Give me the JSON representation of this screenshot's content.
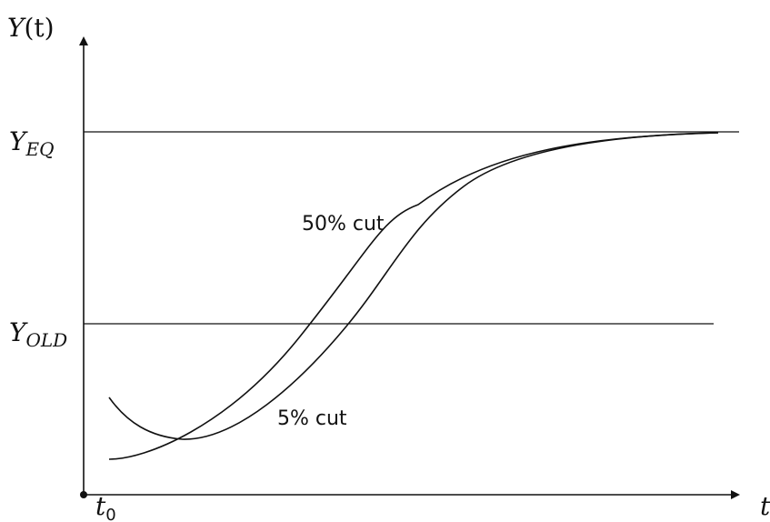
{
  "chart_data": {
    "type": "line",
    "title": "",
    "ylabel": "Y(t)",
    "xlabel": "t",
    "ylabel_main": "Y",
    "ylabel_paren": "(t)",
    "x_tick_main": "t",
    "x_tick_sub": "0",
    "levels": [
      {
        "name": "Y_EQ",
        "main": "Y",
        "sub": "EQ"
      },
      {
        "name": "Y_OLD",
        "main": "Y",
        "sub": "OLD"
      }
    ],
    "series": [
      {
        "name": "50% cut",
        "label": "50% cut"
      },
      {
        "name": "5% cut",
        "label": "5% cut"
      }
    ],
    "grid": false,
    "legend": "none"
  }
}
